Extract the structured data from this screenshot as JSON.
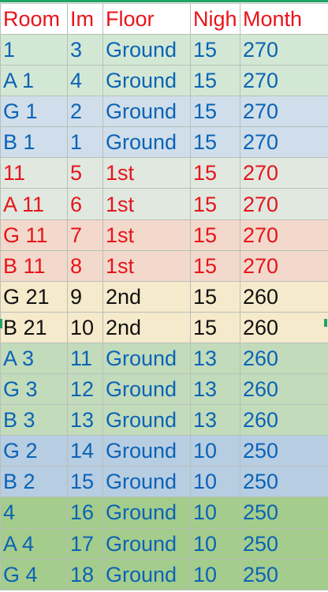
{
  "columns": [
    "Room",
    "Im",
    "Floor",
    "Nigh",
    "Month"
  ],
  "header_color": "#e8141a",
  "rows": [
    {
      "cells": [
        "1",
        "3",
        "Ground",
        "15",
        "270"
      ],
      "bg": "#d3e8d4",
      "color": "#0b63b6"
    },
    {
      "cells": [
        "A 1",
        "4",
        "Ground",
        "15",
        "270"
      ],
      "bg": "#d3e8d4",
      "color": "#0b63b6"
    },
    {
      "cells": [
        "G 1",
        "2",
        "Ground",
        "15",
        "270"
      ],
      "bg": "#cfdeea",
      "color": "#0b63b6"
    },
    {
      "cells": [
        "B 1",
        "1",
        "Ground",
        "15",
        "270"
      ],
      "bg": "#cfdeea",
      "color": "#0b63b6"
    },
    {
      "cells": [
        "11",
        "5",
        "1st",
        "15",
        "270"
      ],
      "bg": "#e0e8e0",
      "color": "#e8141a"
    },
    {
      "cells": [
        "A 11",
        "6",
        "1st",
        "15",
        "270"
      ],
      "bg": "#e0e8e0",
      "color": "#e8141a"
    },
    {
      "cells": [
        "G 11",
        "7",
        "1st",
        "15",
        "270"
      ],
      "bg": "#f2d9cc",
      "color": "#e8141a"
    },
    {
      "cells": [
        "B 11",
        "8",
        "1st",
        "15",
        "270"
      ],
      "bg": "#f2d9cc",
      "color": "#e8141a"
    },
    {
      "cells": [
        "G 21",
        "9",
        "2nd",
        "15",
        "260"
      ],
      "bg": "#f5eacb",
      "color": "#111111"
    },
    {
      "cells": [
        "B 21",
        "10",
        "2nd",
        "15",
        "260"
      ],
      "bg": "#f5eacb",
      "color": "#111111"
    },
    {
      "cells": [
        "A 3",
        "11",
        "Ground",
        "13",
        "260"
      ],
      "bg": "#c2dbbb",
      "color": "#0b63b6"
    },
    {
      "cells": [
        "G 3",
        "12",
        "Ground",
        "13",
        "260"
      ],
      "bg": "#c2dbbb",
      "color": "#0b63b6"
    },
    {
      "cells": [
        "B 3",
        "13",
        "Ground",
        "13",
        "260"
      ],
      "bg": "#c2dbbb",
      "color": "#0b63b6"
    },
    {
      "cells": [
        "G 2",
        "14",
        "Ground",
        "10",
        "250"
      ],
      "bg": "#b7cde2",
      "color": "#0b63b6"
    },
    {
      "cells": [
        "B 2",
        "15",
        "Ground",
        "10",
        "250"
      ],
      "bg": "#b7cde2",
      "color": "#0b63b6"
    },
    {
      "cells": [
        "4",
        "16",
        "Ground",
        "10",
        "250"
      ],
      "bg": "#a4cc8c",
      "color": "#0b63b6"
    },
    {
      "cells": [
        "A 4",
        "17",
        "Ground",
        "10",
        "250"
      ],
      "bg": "#a4cc8c",
      "color": "#0b63b6"
    },
    {
      "cells": [
        "G 4",
        "18",
        "Ground",
        "10",
        "250"
      ],
      "bg": "#a4cc8c",
      "color": "#0b63b6"
    }
  ]
}
